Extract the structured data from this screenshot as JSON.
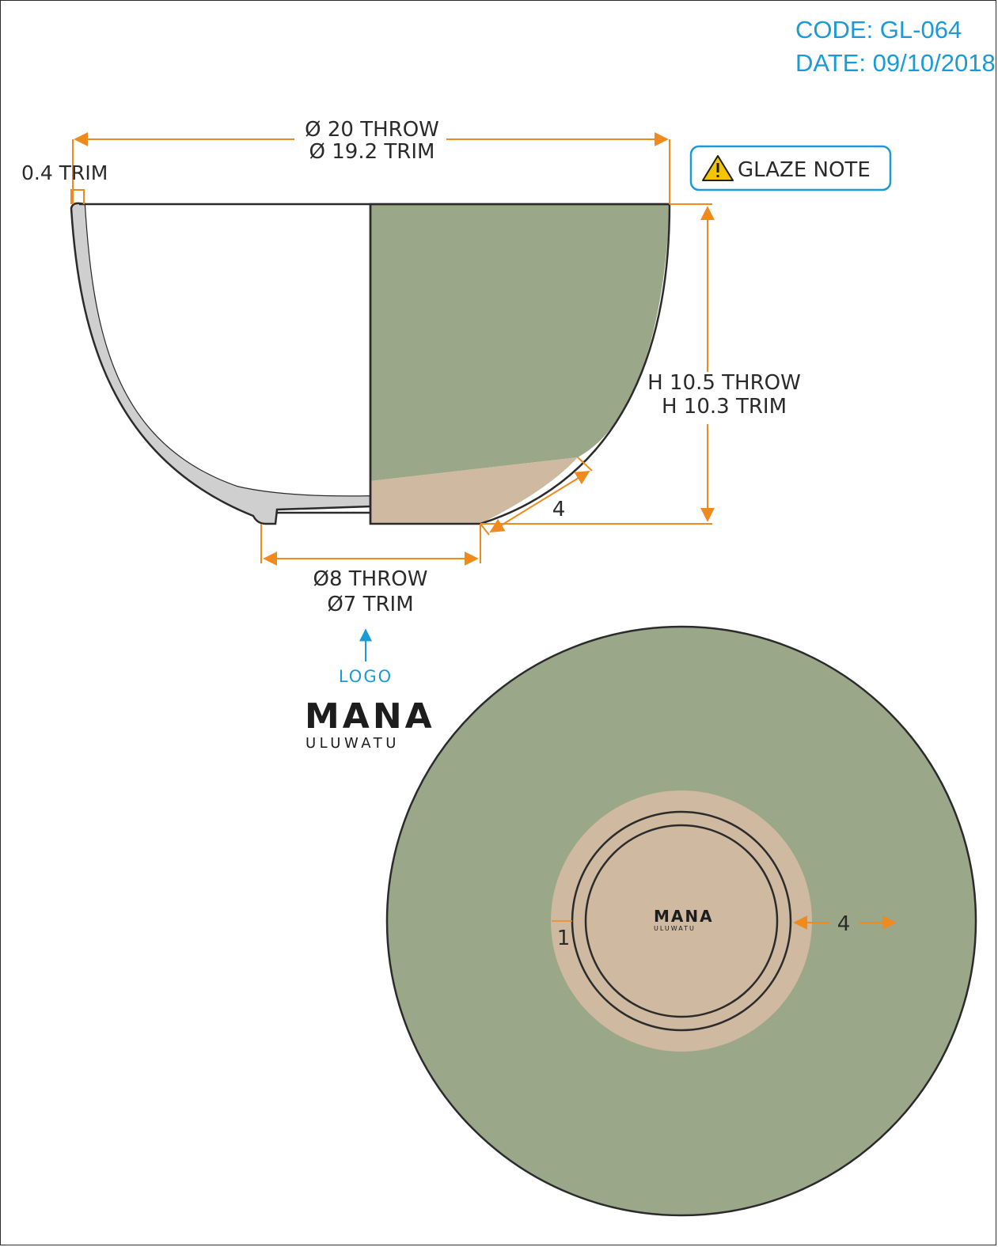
{
  "header": {
    "code": "CODE: GL-064",
    "date": "DATE: 09/10/2018"
  },
  "glaze_note": {
    "icon": "warning-triangle-icon",
    "label": "GLAZE NOTE"
  },
  "dimensions": {
    "rim_throw": "Ø 20 THROW",
    "rim_trim": "Ø 19.2 TRIM",
    "wall_trim": "0.4 TRIM",
    "height_throw": "H 10.5 THROW",
    "height_trim": "H 10.3 TRIM",
    "foot_offset": "4",
    "foot_throw": "Ø8 THROW",
    "foot_trim": "Ø7 TRIM",
    "bottom_ring_width": "1",
    "bottom_unglazed_band": "4"
  },
  "logo": {
    "label": "LOGO",
    "brand_name": "MANA",
    "brand_sub": "ULUWATU"
  },
  "colors": {
    "glaze_green": "#9aa789",
    "raw_clay": "#cfb9a0",
    "wall_section": "#cfcfcf",
    "dimension_orange": "#f08a1c",
    "annotation_blue": "#1a9ad6",
    "outline": "#2b2b2b"
  }
}
